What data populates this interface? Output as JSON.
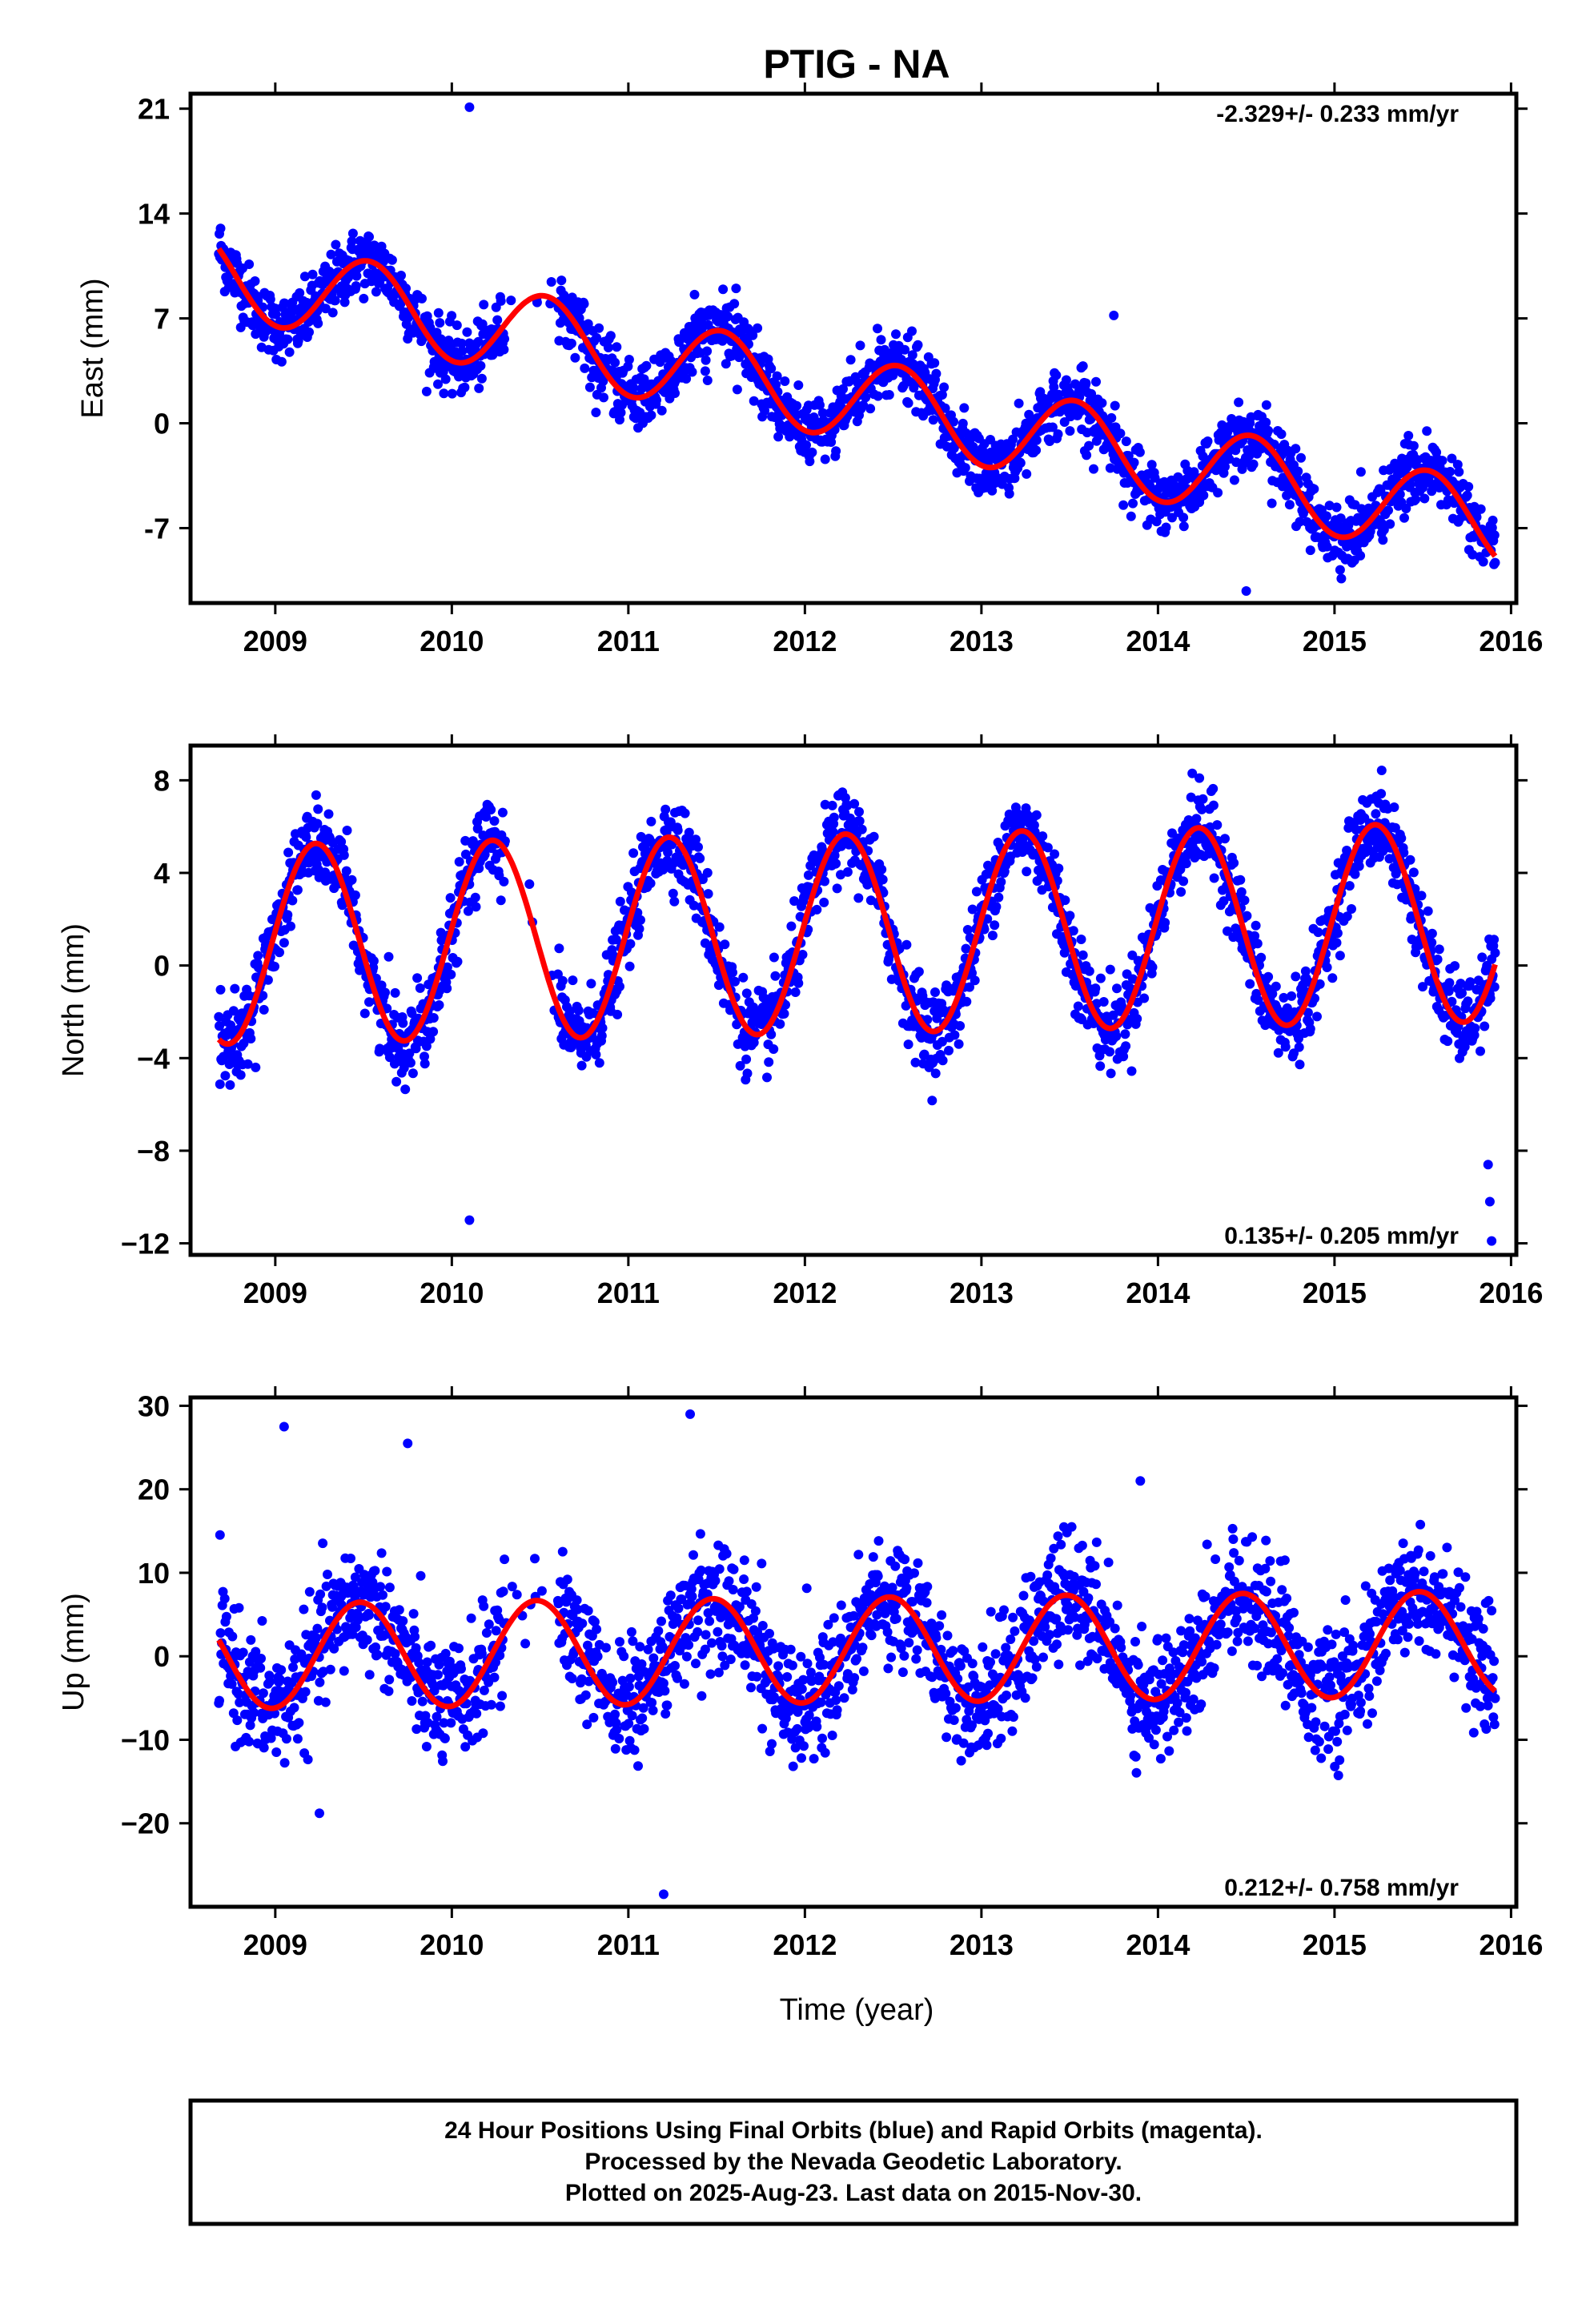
{
  "title": "PTIG - NA",
  "x_axis_label": "Time (year)",
  "caption": {
    "line1": "24 Hour Positions Using Final Orbits (blue) and Rapid Orbits (magenta).",
    "line2": "Processed by the Nevada Geodetic Laboratory.",
    "line3": "Plotted on 2025-Aug-23. Last data on 2015-Nov-30."
  },
  "colors": {
    "points": "#0000ff",
    "fit": "#ff0000",
    "axes": "#000000"
  },
  "chart_data": [
    {
      "type": "scatter",
      "ylabel": "East (mm)",
      "xlim": [
        2008.52,
        2016.03
      ],
      "ylim": [
        -12,
        22
      ],
      "xticks": [
        2009,
        2010,
        2011,
        2012,
        2013,
        2014,
        2015,
        2016
      ],
      "yticks": [
        -7,
        0,
        7,
        14,
        21
      ],
      "ytick_labels": [
        "-7",
        "0",
        "7",
        "14",
        "21"
      ],
      "rate_label": "-2.329+/- 0.233 mm/yr",
      "data_range": [
        2008.68,
        2015.91
      ],
      "data_gap": [
        2010.3,
        2010.6
      ],
      "fit": {
        "intercept": 10.0,
        "rate": -2.329,
        "amplitude": 2.8,
        "peak_phase": 0.85,
        "phase_ref": 2008.68
      },
      "scatter_sd": 1.1,
      "n_points": 2150,
      "outliers": [
        {
          "x": 2010.1,
          "y": 21.1
        },
        {
          "x": 2013.75,
          "y": 7.2
        },
        {
          "x": 2014.5,
          "y": -11.2
        }
      ]
    },
    {
      "type": "scatter",
      "ylabel": "North (mm)",
      "xlim": [
        2008.52,
        2016.03
      ],
      "ylim": [
        -12.5,
        9.5
      ],
      "xticks": [
        2009,
        2010,
        2011,
        2012,
        2013,
        2014,
        2015,
        2016
      ],
      "yticks": [
        -12,
        -8,
        -4,
        0,
        4,
        8
      ],
      "ytick_labels": [
        "−12",
        "−8",
        "−4",
        "0",
        "4",
        "8"
      ],
      "rate_label": "0.135+/- 0.205 mm/yr",
      "data_range": [
        2008.68,
        2015.91
      ],
      "data_gap": [
        2010.3,
        2010.6
      ],
      "fit": {
        "intercept": 0.9,
        "rate": 0.135,
        "amplitude": 4.3,
        "peak_phase": 0.55,
        "phase_ref": 2008.68
      },
      "scatter_sd": 0.9,
      "n_points": 2150,
      "outliers": [
        {
          "x": 2010.1,
          "y": -11.0
        },
        {
          "x": 2015.88,
          "y": -10.2
        },
        {
          "x": 2015.89,
          "y": -11.9
        },
        {
          "x": 2015.87,
          "y": -8.6
        }
      ]
    },
    {
      "type": "scatter",
      "ylabel": "Up (mm)",
      "xlim": [
        2008.52,
        2016.03
      ],
      "ylim": [
        -30,
        31
      ],
      "xticks": [
        2009,
        2010,
        2011,
        2012,
        2013,
        2014,
        2015,
        2016
      ],
      "yticks": [
        -20,
        -10,
        0,
        10,
        20,
        30
      ],
      "ytick_labels": [
        "−20",
        "−10",
        "0",
        "10",
        "20",
        "30"
      ],
      "rate_label": "0.212+/- 0.758 mm/yr",
      "data_range": [
        2008.68,
        2015.91
      ],
      "data_gap": [
        2010.3,
        2010.6
      ],
      "fit": {
        "intercept": 0.0,
        "rate": 0.212,
        "amplitude": 6.3,
        "peak_phase": 0.8,
        "phase_ref": 2008.68
      },
      "scatter_sd": 3.6,
      "n_points": 2150,
      "outliers": [
        {
          "x": 2009.05,
          "y": 27.5
        },
        {
          "x": 2009.75,
          "y": 25.5
        },
        {
          "x": 2011.35,
          "y": 29.0
        },
        {
          "x": 2011.2,
          "y": -28.5
        },
        {
          "x": 2009.25,
          "y": -18.8
        },
        {
          "x": 2013.9,
          "y": 21.0
        }
      ]
    }
  ]
}
